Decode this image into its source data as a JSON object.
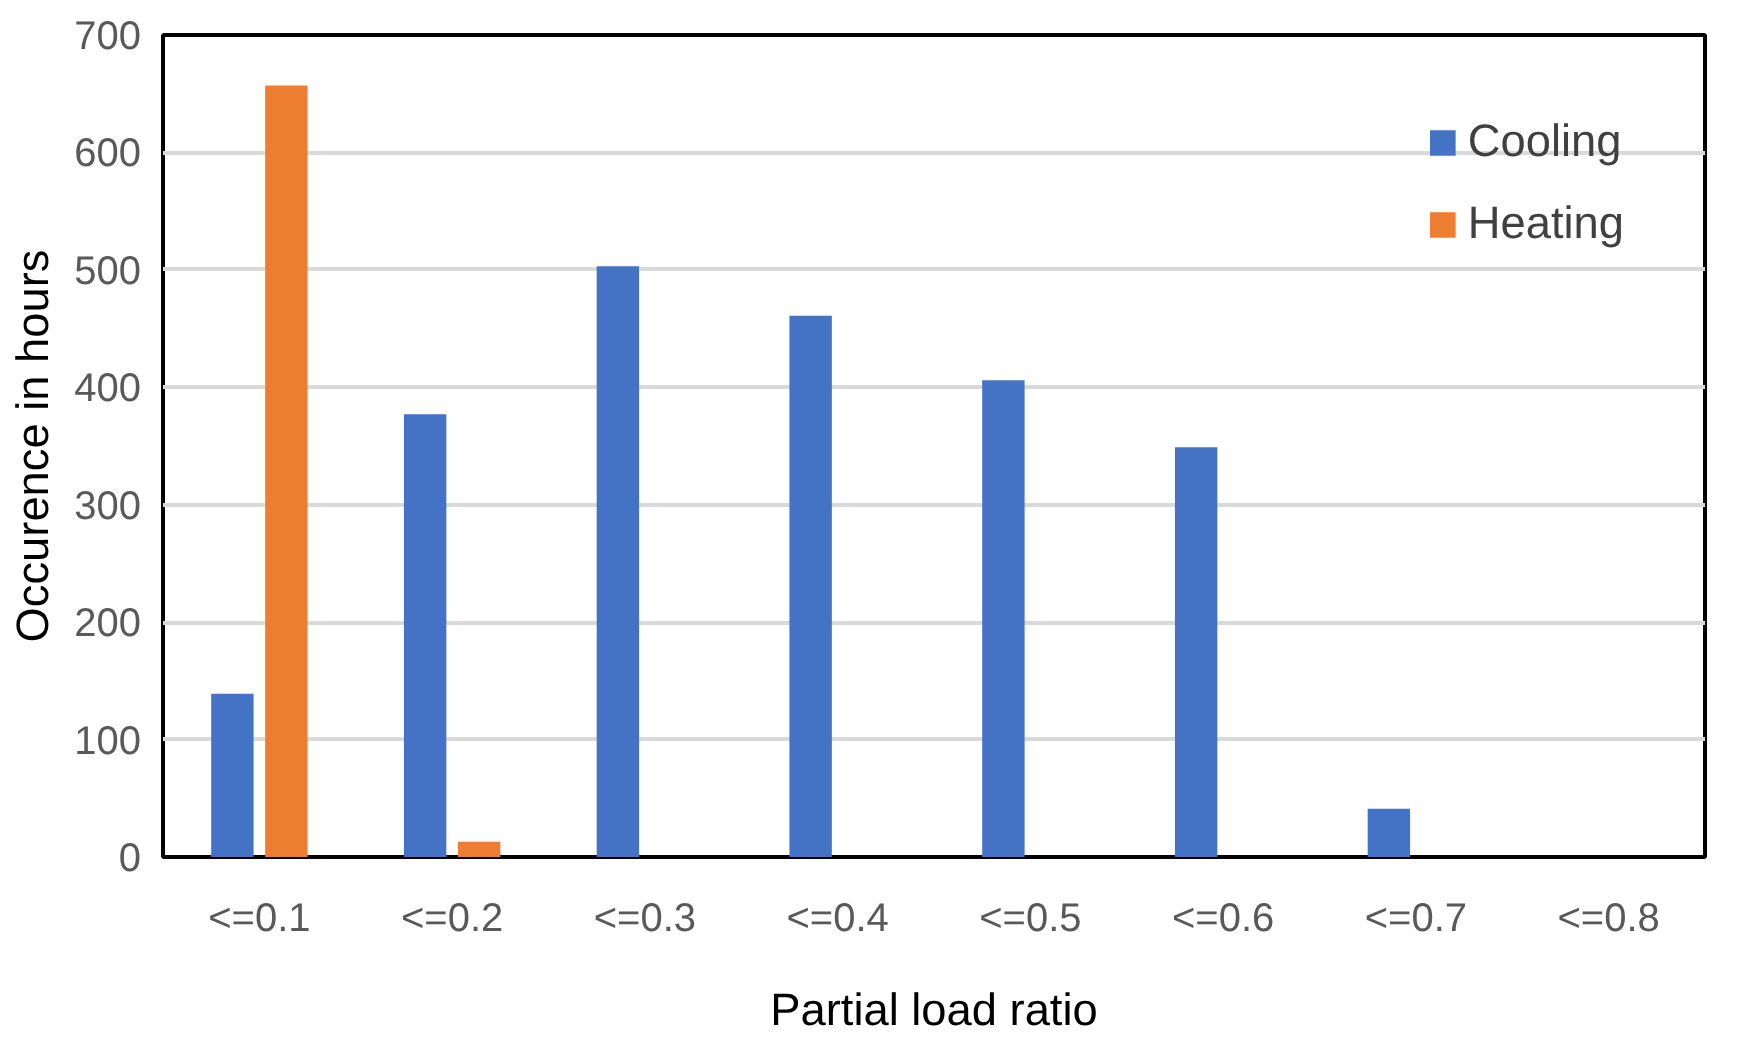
{
  "chart_data": {
    "type": "bar",
    "xlabel": "Partial load ratio",
    "ylabel": "Occurence in hours",
    "categories": [
      "<=0.1",
      "<=0.2",
      "<=0.3",
      "<=0.4",
      "<=0.5",
      "<=0.6",
      "<=0.7",
      "<=0.8"
    ],
    "series": [
      {
        "name": "Cooling",
        "color": "#4472c4",
        "values": [
          139,
          377,
          503,
          461,
          406,
          349,
          41,
          0
        ]
      },
      {
        "name": "Heating",
        "color": "#ed7d31",
        "values": [
          657,
          13,
          0,
          0,
          0,
          0,
          0,
          0
        ]
      }
    ],
    "ylim": [
      0,
      700
    ],
    "yticks": [
      0,
      100,
      200,
      300,
      400,
      500,
      600,
      700
    ],
    "grid": "y",
    "legend": "top right"
  }
}
